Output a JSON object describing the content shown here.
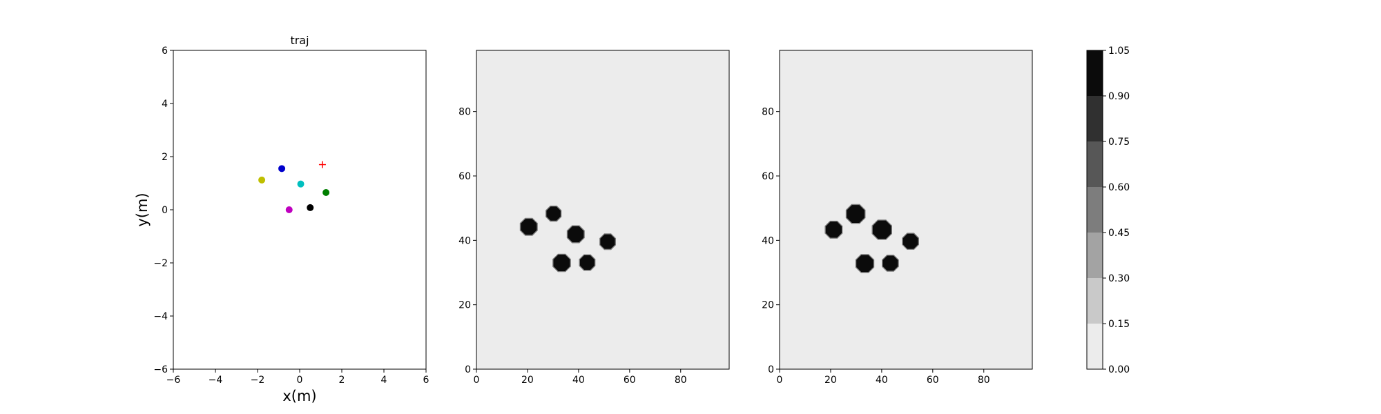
{
  "chart_data": [
    {
      "type": "scatter",
      "title": "traj",
      "xlabel": "x(m)",
      "ylabel": "y(m)",
      "xlim": [
        -6,
        6
      ],
      "ylim": [
        -6,
        6
      ],
      "xticks": [
        -6,
        -4,
        -2,
        0,
        2,
        4,
        6
      ],
      "yticks": [
        -6,
        -4,
        -2,
        0,
        2,
        4,
        6
      ],
      "series": [
        {
          "marker": "circle",
          "color": "#0000cc",
          "x": -0.85,
          "y": 1.55
        },
        {
          "marker": "circle",
          "color": "#bfbf00",
          "x": -1.8,
          "y": 1.12
        },
        {
          "marker": "circle",
          "color": "#00bfbf",
          "x": 0.05,
          "y": 0.97
        },
        {
          "marker": "circle",
          "color": "#007f00",
          "x": 1.25,
          "y": 0.65
        },
        {
          "marker": "circle",
          "color": "#bf00bf",
          "x": -0.5,
          "y": 0.0
        },
        {
          "marker": "circle",
          "color": "#000000",
          "x": 0.5,
          "y": 0.08
        },
        {
          "marker": "plus",
          "color": "#ff0000",
          "x": 1.08,
          "y": 1.7
        }
      ]
    },
    {
      "type": "heatmap",
      "title": "",
      "xlim": [
        0,
        99
      ],
      "ylim": [
        0,
        99
      ],
      "xticks": [
        0,
        20,
        40,
        60,
        80
      ],
      "yticks": [
        0,
        20,
        40,
        60,
        80
      ],
      "background_level": 0.05,
      "blobs": [
        {
          "x": 20.5,
          "y": 44.2,
          "r": 3.4
        },
        {
          "x": 30.2,
          "y": 48.3,
          "r": 3.0
        },
        {
          "x": 38.9,
          "y": 41.9,
          "r": 3.4
        },
        {
          "x": 51.4,
          "y": 39.6,
          "r": 3.1
        },
        {
          "x": 33.4,
          "y": 33.0,
          "r": 3.5
        },
        {
          "x": 43.4,
          "y": 33.1,
          "r": 3.1
        }
      ]
    },
    {
      "type": "heatmap",
      "title": "",
      "xlim": [
        0,
        99
      ],
      "ylim": [
        0,
        99
      ],
      "xticks": [
        0,
        20,
        40,
        60,
        80
      ],
      "yticks": [
        0,
        20,
        40,
        60,
        80
      ],
      "background_level": 0.05,
      "blobs": [
        {
          "x": 21.2,
          "y": 43.3,
          "r": 3.4
        },
        {
          "x": 29.8,
          "y": 48.2,
          "r": 3.8
        },
        {
          "x": 40.1,
          "y": 43.3,
          "r": 3.9
        },
        {
          "x": 51.3,
          "y": 39.7,
          "r": 3.2
        },
        {
          "x": 33.4,
          "y": 32.8,
          "r": 3.6
        },
        {
          "x": 43.4,
          "y": 32.9,
          "r": 3.2
        }
      ]
    }
  ],
  "colorbar": {
    "ticks": [
      "0.00",
      "0.15",
      "0.30",
      "0.45",
      "0.60",
      "0.75",
      "0.90",
      "1.05"
    ],
    "levels": [
      0,
      0.15,
      0.3,
      0.45,
      0.6,
      0.75,
      0.9,
      1.05
    ],
    "colors": [
      "#ececec",
      "#c9c9c9",
      "#a3a3a3",
      "#7d7d7d",
      "#575757",
      "#303030",
      "#0b0b0b"
    ]
  }
}
